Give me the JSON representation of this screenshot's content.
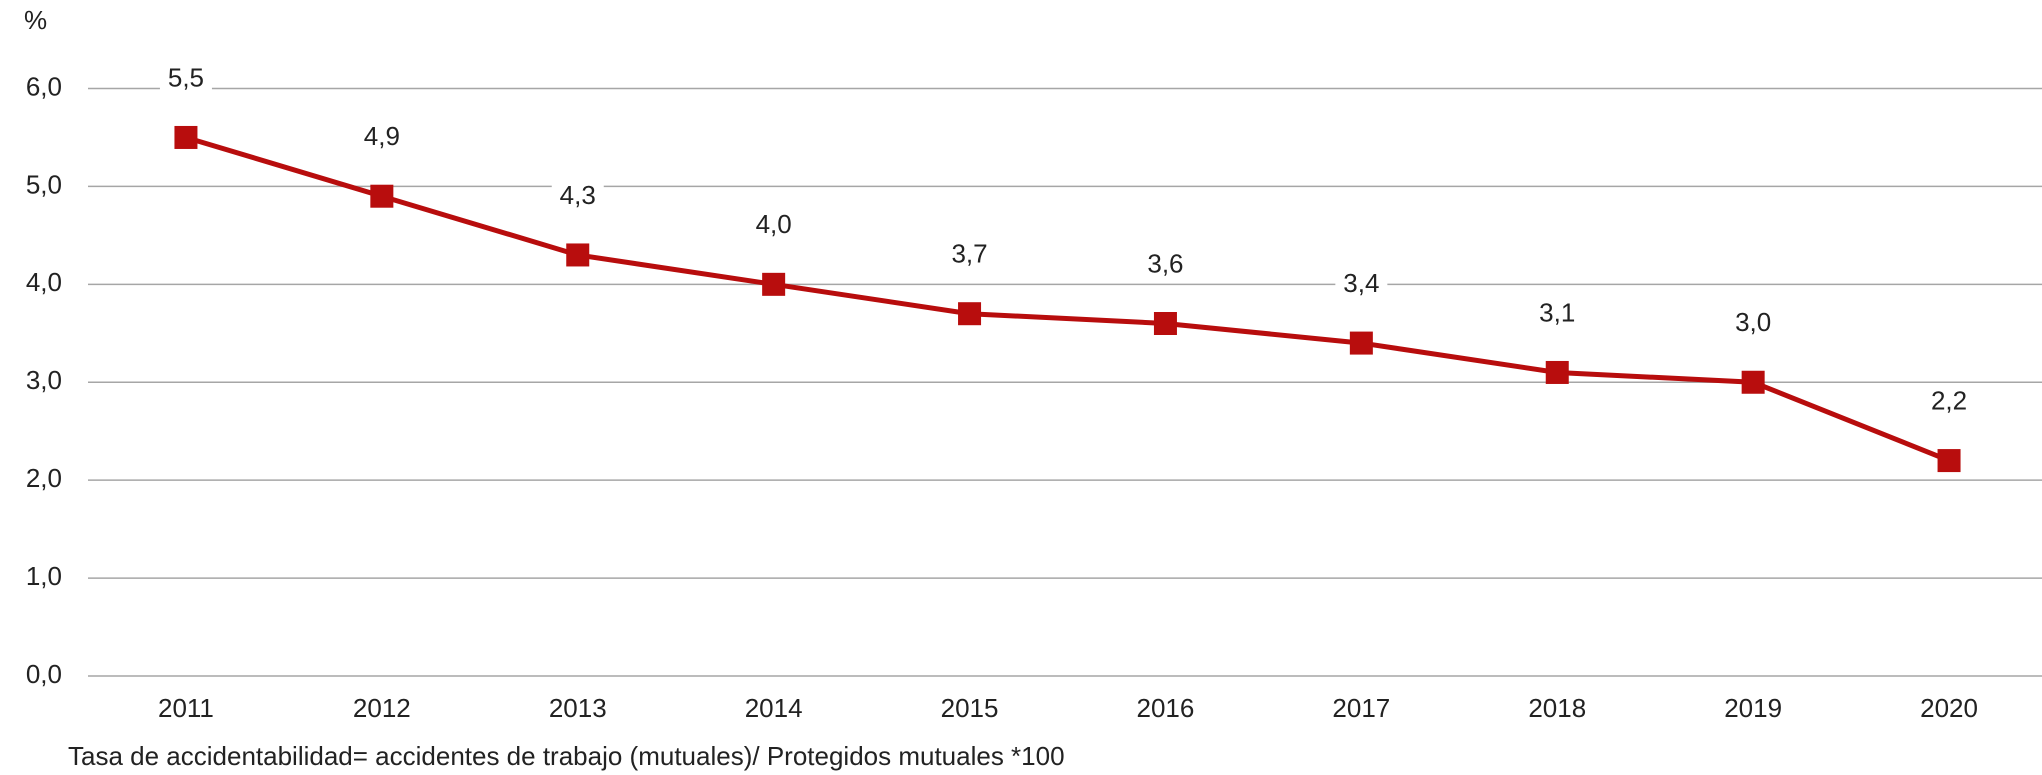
{
  "chart_data": {
    "type": "line",
    "y_label": "%",
    "note": "Tasa de accidentabilidad= accidentes de trabajo (mutuales)/ Protegidos mutuales *100",
    "categories": [
      "2011",
      "2012",
      "2013",
      "2014",
      "2015",
      "2016",
      "2017",
      "2018",
      "2019",
      "2020"
    ],
    "series": [
      {
        "name": "Tasa de accidentabilidad",
        "color": "#b80d0d",
        "values": [
          5.5,
          4.9,
          4.3,
          4.0,
          3.7,
          3.6,
          3.4,
          3.1,
          3.0,
          2.2
        ],
        "value_labels": [
          "5,5",
          "4,9",
          "4,3",
          "4,0",
          "3,7",
          "3,6",
          "3,4",
          "3,1",
          "3,0",
          "2,2"
        ]
      }
    ],
    "ylim": [
      0,
      6
    ],
    "yticks": [
      {
        "value": 0,
        "label": "0,0"
      },
      {
        "value": 1,
        "label": "1,0"
      },
      {
        "value": 2,
        "label": "2,0"
      },
      {
        "value": 3,
        "label": "3,0"
      },
      {
        "value": 4,
        "label": "4,0"
      },
      {
        "value": 5,
        "label": "5,0"
      },
      {
        "value": 6,
        "label": "6,0"
      }
    ],
    "grid": true
  }
}
